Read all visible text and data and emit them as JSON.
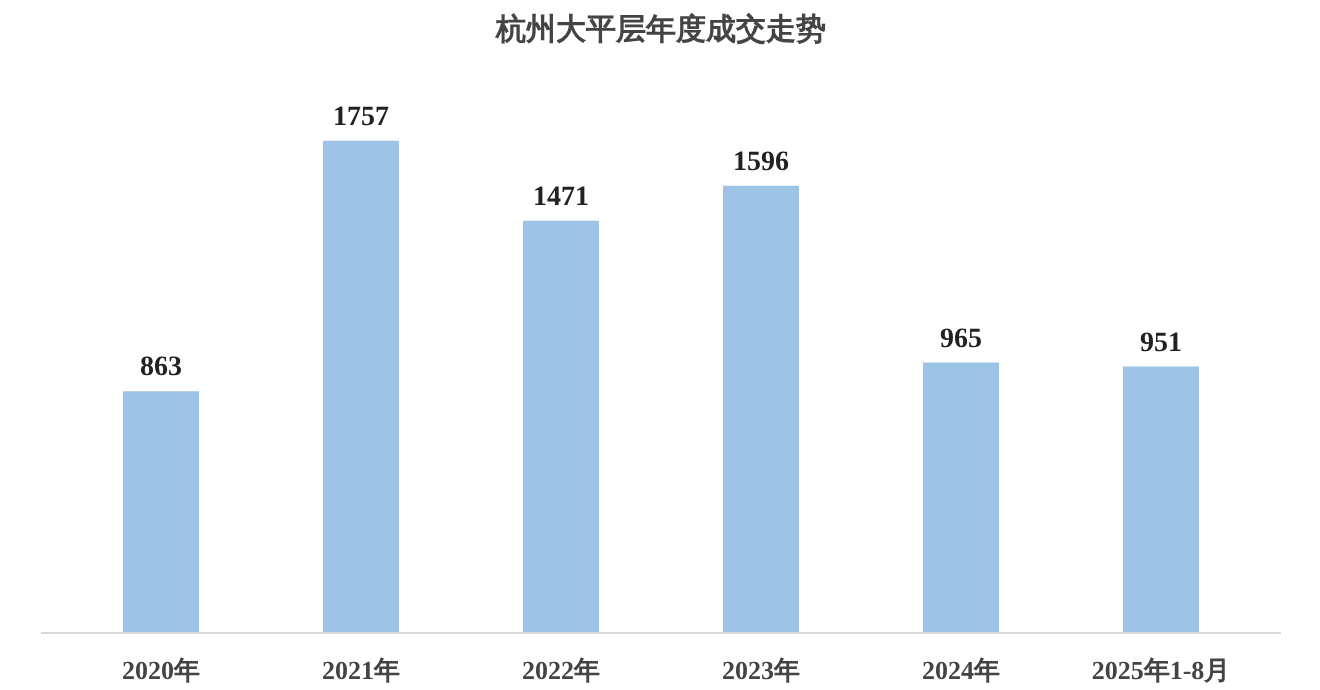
{
  "chart_data": {
    "type": "bar",
    "title": "杭州大平层年度成交走势",
    "categories": [
      "2020年",
      "2021年",
      "2022年",
      "2023年",
      "2024年",
      "2025年1-8月"
    ],
    "values": [
      863,
      1757,
      1471,
      1596,
      965,
      951
    ],
    "color": "#9dc3e6",
    "data_labels": true
  }
}
